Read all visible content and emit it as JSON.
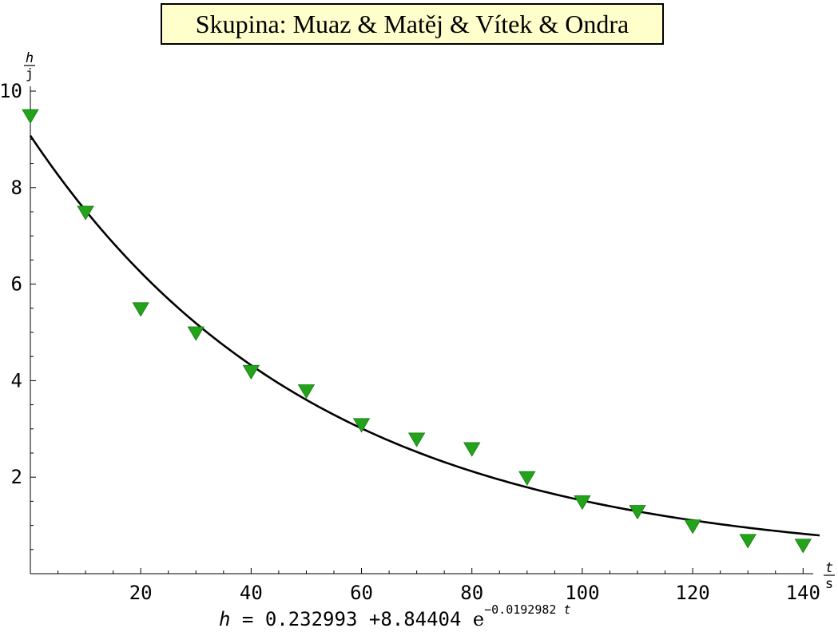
{
  "title": "Skupina: Muaz & Matěj & Vítek & Ondra",
  "formula": {
    "lhs": "h",
    "eq": "=",
    "const": "0.232993",
    "plus": "+",
    "amp": "8.84404",
    "e": "e",
    "exponent": "−0.0192982",
    "var": "t"
  },
  "colors": {
    "marker": "#22a31a",
    "curve": "#000000",
    "title_bg": "#ffffcc"
  },
  "chart_data": {
    "type": "scatter",
    "x_unit": {
      "num": "t",
      "den": "s"
    },
    "y_unit": {
      "num": "h",
      "den": "j"
    },
    "xlim": [
      0,
      143
    ],
    "ylim": [
      0,
      10
    ],
    "x_ticks": [
      20,
      40,
      60,
      80,
      100,
      120,
      140
    ],
    "y_ticks": [
      2,
      4,
      6,
      8,
      10
    ],
    "x_tick_labels": [
      "20",
      "40",
      "60",
      "80",
      "100",
      "120",
      "140"
    ],
    "y_tick_labels": [
      "2",
      "4",
      "6",
      "8",
      "10"
    ],
    "points": {
      "marker": "down-triangle",
      "x": [
        0,
        10,
        20,
        30,
        40,
        50,
        60,
        70,
        80,
        90,
        100,
        110,
        120,
        130,
        140
      ],
      "y": [
        9.5,
        7.5,
        5.5,
        5.0,
        4.2,
        3.8,
        3.1,
        2.8,
        2.6,
        2.0,
        1.5,
        1.3,
        1.0,
        0.7,
        0.6
      ]
    },
    "fit": {
      "type": "exponential",
      "a": 0.232993,
      "b": 8.84404,
      "k": -0.0192982,
      "x_range": [
        0,
        143
      ]
    }
  }
}
